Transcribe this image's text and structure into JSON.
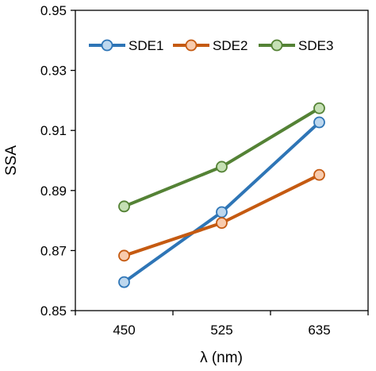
{
  "chart_data": {
    "type": "line",
    "xlabel": "λ (nm)",
    "ylabel": "SSA",
    "categories": [
      "450",
      "525",
      "635"
    ],
    "ylim": [
      0.85,
      0.95
    ],
    "yticks": [
      "0.85",
      "0.87",
      "0.89",
      "0.91",
      "0.93",
      "0.95"
    ],
    "grid": false,
    "legend_position": "top",
    "series": [
      {
        "name": "SDE1",
        "values": [
          0.8595,
          0.8828,
          0.9127
        ],
        "color": "#2e75b6",
        "marker_fill": "#bdd7ee"
      },
      {
        "name": "SDE2",
        "values": [
          0.8683,
          0.8792,
          0.8952
        ],
        "color": "#c55a11",
        "marker_fill": "#f8cbad"
      },
      {
        "name": "SDE3",
        "values": [
          0.8847,
          0.8979,
          0.9174
        ],
        "color": "#548235",
        "marker_fill": "#c5e0b4"
      }
    ]
  }
}
